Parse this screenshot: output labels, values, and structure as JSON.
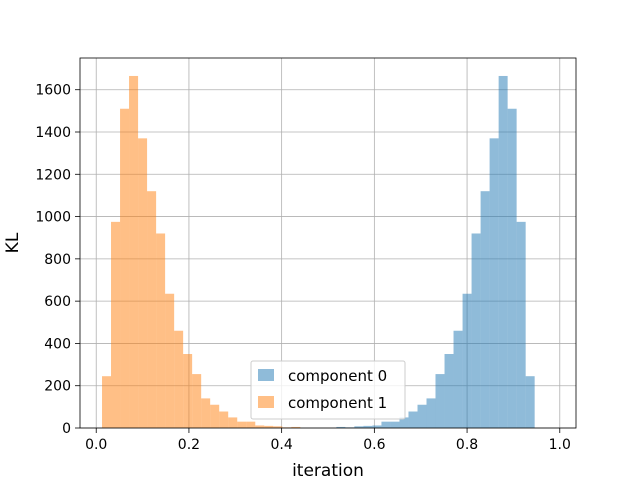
{
  "chart_data": {
    "type": "bar",
    "subtype": "histogram",
    "title": "",
    "xlabel": "iteration",
    "ylabel": "KL",
    "xlim": [
      -0.035,
      1.035
    ],
    "ylim": [
      0,
      1750
    ],
    "xticks": [
      0.0,
      0.2,
      0.4,
      0.6,
      0.8,
      1.0
    ],
    "xtick_labels": [
      "0.0",
      "0.2",
      "0.4",
      "0.6",
      "0.8",
      "1.0"
    ],
    "yticks": [
      0,
      200,
      400,
      600,
      800,
      1000,
      1200,
      1400,
      1600
    ],
    "ytick_labels": [
      "0",
      "200",
      "400",
      "600",
      "800",
      "1000",
      "1200",
      "1400",
      "1600"
    ],
    "grid": true,
    "legend_position": "lower-center",
    "bin_edges": [
      0.0125,
      0.0319,
      0.0514,
      0.0708,
      0.0903,
      0.1097,
      0.1292,
      0.1486,
      0.1681,
      0.1875,
      0.2069,
      0.2264,
      0.2458,
      0.2653,
      0.2847,
      0.3042,
      0.3236,
      0.3431,
      0.3625,
      0.3819,
      0.4014,
      0.4208,
      0.4403,
      0.4597,
      0.4792,
      0.4986,
      0.5181,
      0.5375,
      0.5569,
      0.5764,
      0.5958,
      0.6153,
      0.6347,
      0.6542,
      0.6736,
      0.6931,
      0.7125,
      0.7319,
      0.7514,
      0.7708,
      0.7903,
      0.8097,
      0.8292,
      0.8486,
      0.8681,
      0.8875,
      0.9069,
      0.9264,
      0.9458,
      0.9653,
      0.9847,
      0.9875
    ],
    "series": [
      {
        "name": "component 0",
        "color": "#1f77b4",
        "opacity": 0.5,
        "counts": [
          0,
          0,
          0,
          0,
          0,
          0,
          0,
          0,
          0,
          0,
          0,
          0,
          0,
          0,
          0,
          0,
          0,
          0,
          0,
          0,
          0,
          0,
          0,
          0,
          0,
          0,
          5,
          3,
          8,
          10,
          12,
          30,
          30,
          50,
          78,
          110,
          140,
          255,
          350,
          460,
          635,
          920,
          1120,
          1370,
          1665,
          1510,
          975,
          245,
          0,
          0,
          0
        ]
      },
      {
        "name": "component 1",
        "color": "#ff7f0e",
        "opacity": 0.5,
        "counts": [
          245,
          975,
          1510,
          1665,
          1370,
          1120,
          920,
          635,
          460,
          350,
          255,
          140,
          110,
          78,
          50,
          30,
          30,
          12,
          10,
          8,
          3,
          5,
          0,
          0,
          0,
          0,
          0,
          0,
          0,
          0,
          0,
          0,
          0,
          0,
          0,
          0,
          0,
          0,
          0,
          0,
          0,
          0,
          0,
          0,
          0,
          0,
          0,
          0,
          0,
          0,
          0
        ]
      }
    ]
  }
}
